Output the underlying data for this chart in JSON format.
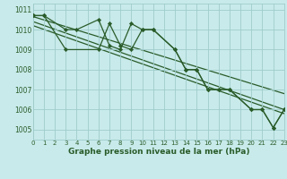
{
  "title": "Graphe pression niveau de la mer (hPa)",
  "background_color": "#c8eaea",
  "grid_color": "#a0cccc",
  "line_color": "#2a5c2a",
  "x_values": [
    0,
    1,
    2,
    3,
    4,
    5,
    6,
    7,
    8,
    9,
    10,
    11,
    12,
    13,
    14,
    15,
    16,
    17,
    18,
    19,
    20,
    21,
    22,
    23
  ],
  "series1_x": [
    0,
    1,
    3,
    4,
    6,
    7,
    8,
    9,
    10,
    11,
    13,
    14,
    15,
    16,
    17,
    18,
    20,
    21,
    22,
    23
  ],
  "series1_y": [
    1010.7,
    1010.7,
    1010.0,
    1010.0,
    1010.5,
    1009.2,
    1009.0,
    1010.3,
    1010.0,
    1010.0,
    1009.0,
    1008.0,
    1008.0,
    1007.0,
    1007.0,
    1007.0,
    1006.0,
    1006.0,
    1005.1,
    1006.0
  ],
  "series2_x": [
    0,
    1,
    3,
    6,
    7,
    8,
    9,
    10,
    11,
    13,
    14,
    15,
    16,
    17,
    18,
    20,
    21,
    22,
    23
  ],
  "series2_y": [
    1010.7,
    1010.7,
    1009.0,
    1009.0,
    1010.3,
    1009.2,
    1009.0,
    1010.0,
    1010.0,
    1009.0,
    1008.0,
    1008.0,
    1007.0,
    1007.0,
    1007.0,
    1006.0,
    1006.0,
    1005.1,
    1006.0
  ],
  "trend1_x": [
    0,
    23
  ],
  "trend1_y": [
    1010.65,
    1006.8
  ],
  "trend2_x": [
    0,
    23
  ],
  "trend2_y": [
    1010.4,
    1006.0
  ],
  "trend3_x": [
    0,
    23
  ],
  "trend3_y": [
    1010.2,
    1005.8
  ],
  "ylim": [
    1004.5,
    1011.3
  ],
  "yticks": [
    1005,
    1006,
    1007,
    1008,
    1009,
    1010,
    1011
  ],
  "xlim": [
    0,
    23
  ],
  "xticks": [
    0,
    1,
    2,
    3,
    4,
    5,
    6,
    7,
    8,
    9,
    10,
    11,
    12,
    13,
    14,
    15,
    16,
    17,
    18,
    19,
    20,
    21,
    22,
    23
  ],
  "marker": "D",
  "markersize": 2.2,
  "linewidth": 0.9,
  "title_fontsize": 6.5,
  "tick_fontsize": 5.0,
  "ytick_fontsize": 5.5
}
